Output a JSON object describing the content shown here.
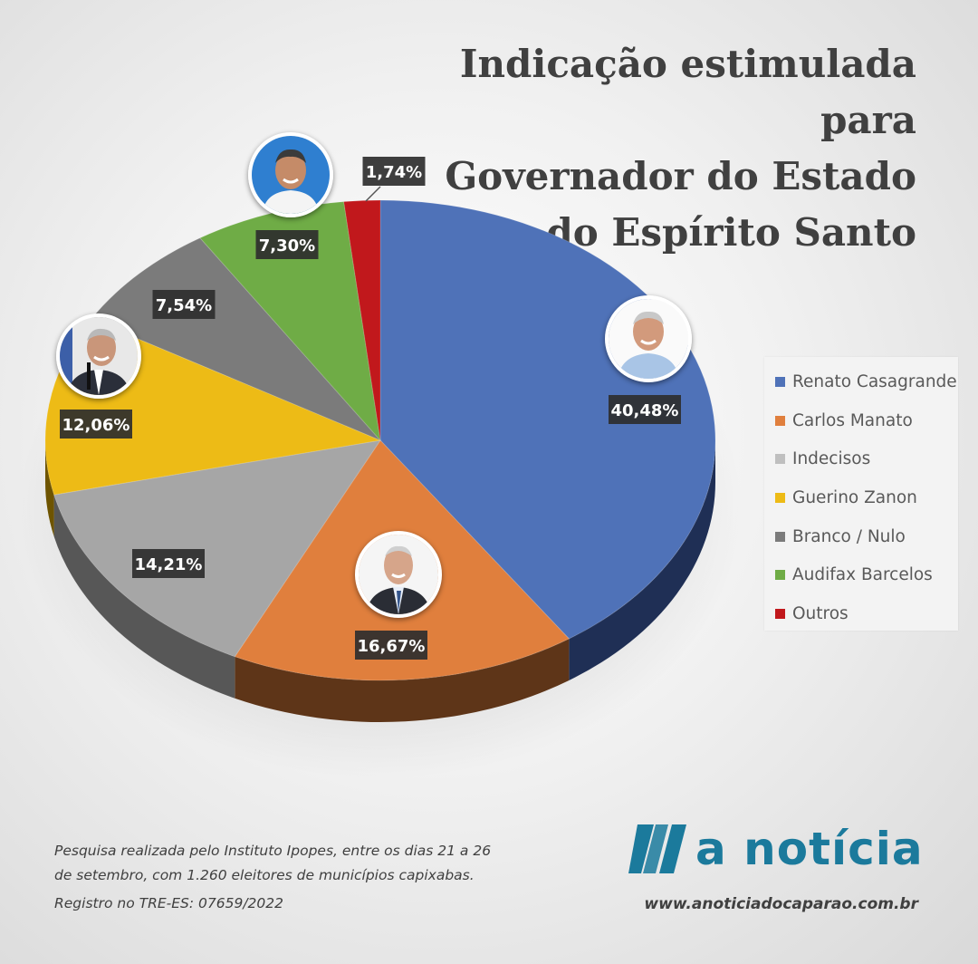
{
  "title_lines": [
    "Indicação estimulada para",
    "Governador do Estado",
    "do Espírito Santo"
  ],
  "chart_data": {
    "type": "pie",
    "title": "Indicação estimulada para Governador do Estado do Espírito Santo",
    "legend_position": "right",
    "slices": [
      {
        "name": "Renato Casagrande",
        "value": 40.48,
        "label": "40,48%",
        "color": "#4f72b8",
        "side": "#1f2f55"
      },
      {
        "name": "Carlos Manato",
        "value": 16.67,
        "label": "16,67%",
        "color": "#e07f3d",
        "side": "#5e3518"
      },
      {
        "name": "Indecisos",
        "value": 14.21,
        "label": "14,21%",
        "color": "#a6a6a6",
        "side": "#575757"
      },
      {
        "name": "Guerino Zanon",
        "value": 12.06,
        "label": "12,06%",
        "color": "#edbb16",
        "side": "#6e5400"
      },
      {
        "name": "Branco / Nulo",
        "value": 7.54,
        "label": "7,54%",
        "color": "#7b7b7b",
        "side": "#383838"
      },
      {
        "name": "Audifax Barcelos",
        "value": 7.3,
        "label": "7,30%",
        "color": "#6fac46",
        "side": "#2f4a1d"
      },
      {
        "name": "Outros",
        "value": 1.74,
        "label": "1,74%",
        "color": "#c1181c",
        "side": "#550a0c"
      }
    ]
  },
  "footer": {
    "note_line1": "Pesquisa realizada pelo Instituto Ipopes, entre os dias 21 a 26",
    "note_line2": "de setembro, com 1.260 eleitores de municípios capixabas.",
    "registration": "Registro no TRE-ES: 07659/2022"
  },
  "brand": {
    "name": "a notícia",
    "url": "www.anoticiadocaparao.com.br",
    "color": "#1b7a9c"
  }
}
